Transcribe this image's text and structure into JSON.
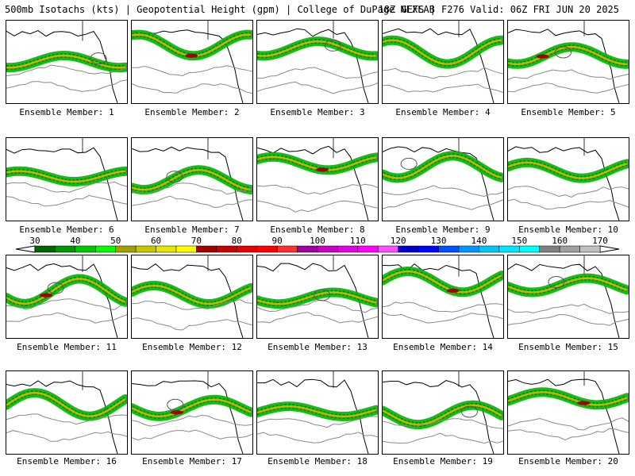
{
  "header": {
    "left_title": "500mb Isotachs (kts) | Geopotential Height (gpm) | College of DuPage NEXLAB",
    "right_title": "18Z GEFS | F276 Valid: 06Z FRI JUN 20 2025"
  },
  "members": [
    {
      "label": "Ensemble Member: 1"
    },
    {
      "label": "Ensemble Member: 2"
    },
    {
      "label": "Ensemble Member: 3"
    },
    {
      "label": "Ensemble Member: 4"
    },
    {
      "label": "Ensemble Member: 5"
    },
    {
      "label": "Ensemble Member: 6"
    },
    {
      "label": "Ensemble Member: 7"
    },
    {
      "label": "Ensemble Member: 8"
    },
    {
      "label": "Ensemble Member: 9"
    },
    {
      "label": "Ensemble Member: 10"
    },
    {
      "label": "Ensemble Member: 11"
    },
    {
      "label": "Ensemble Member: 12"
    },
    {
      "label": "Ensemble Member: 13"
    },
    {
      "label": "Ensemble Member: 14"
    },
    {
      "label": "Ensemble Member: 15"
    },
    {
      "label": "Ensemble Member: 16"
    },
    {
      "label": "Ensemble Member: 17"
    },
    {
      "label": "Ensemble Member: 18"
    },
    {
      "label": "Ensemble Member: 19"
    },
    {
      "label": "Ensemble Member: 20"
    }
  ],
  "colorbar": {
    "tick_labels": [
      "30",
      "40",
      "50",
      "60",
      "70",
      "80",
      "90",
      "100",
      "110",
      "120",
      "130",
      "140",
      "150",
      "160",
      "170"
    ],
    "colors": [
      "#006400",
      "#009600",
      "#00c800",
      "#00ff00",
      "#a0a000",
      "#c8c800",
      "#e6e600",
      "#ffff00",
      "#a00000",
      "#c80000",
      "#e60000",
      "#ff0000",
      "#ff3030",
      "#a000a0",
      "#c800c8",
      "#e600e6",
      "#ff00ff",
      "#ff50ff",
      "#0000c8",
      "#0000ff",
      "#0050ff",
      "#0096ff",
      "#00c8ff",
      "#00e6ff",
      "#00ffff",
      "#808080",
      "#a0a0a0",
      "#c0c0c0"
    ]
  }
}
